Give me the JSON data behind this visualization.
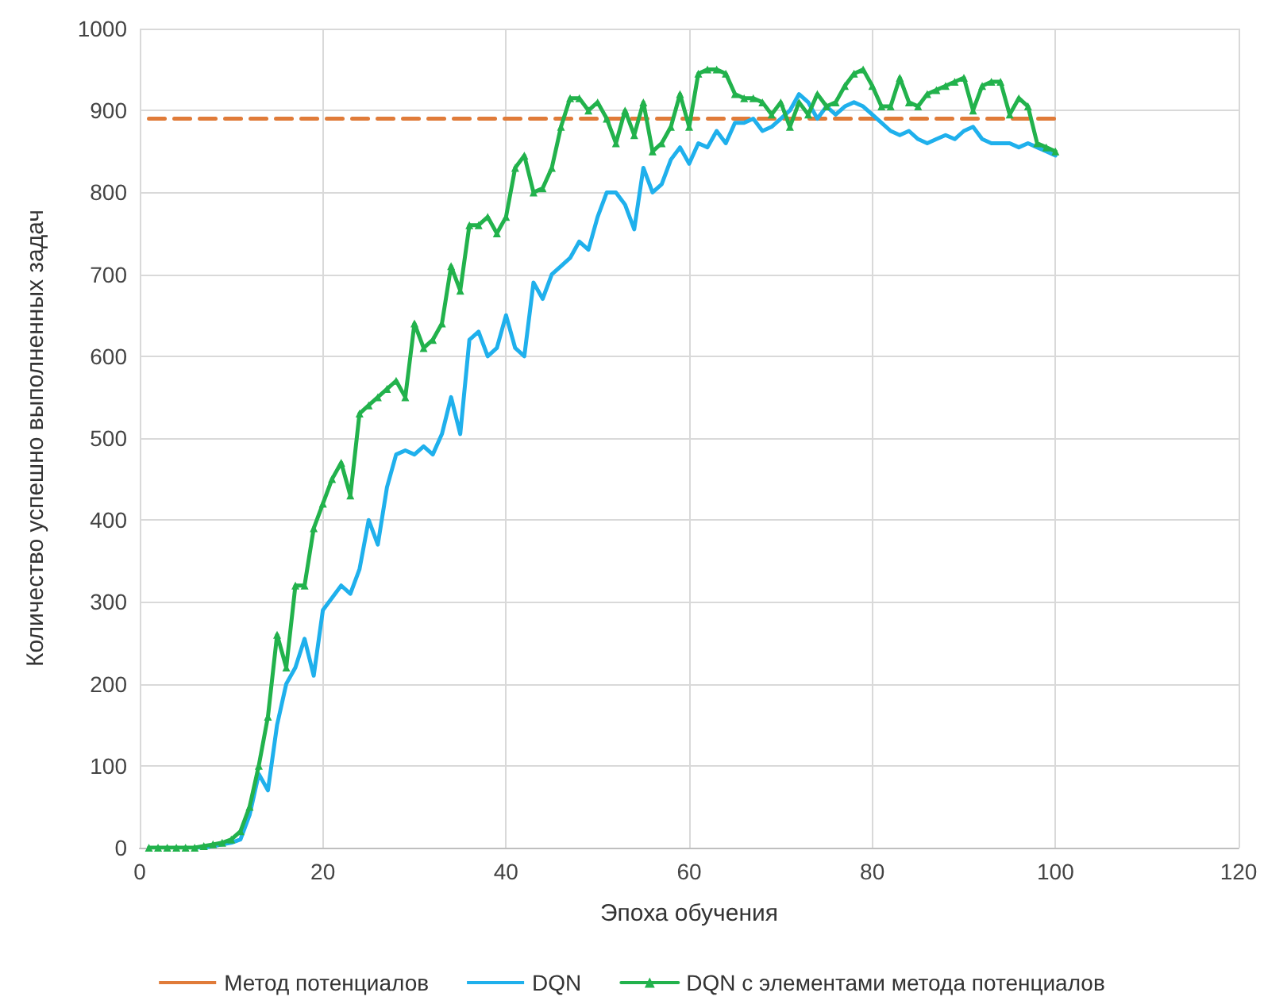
{
  "chart_data": {
    "type": "line",
    "xlabel": "Эпоха обучения",
    "ylabel": "Количество успешно выполненных задач",
    "x": [
      1,
      2,
      3,
      4,
      5,
      6,
      7,
      8,
      9,
      10,
      11,
      12,
      13,
      14,
      15,
      16,
      17,
      18,
      19,
      20,
      21,
      22,
      23,
      24,
      25,
      26,
      27,
      28,
      29,
      30,
      31,
      32,
      33,
      34,
      35,
      36,
      37,
      38,
      39,
      40,
      41,
      42,
      43,
      44,
      45,
      46,
      47,
      48,
      49,
      50,
      51,
      52,
      53,
      54,
      55,
      56,
      57,
      58,
      59,
      60,
      61,
      62,
      63,
      64,
      65,
      66,
      67,
      68,
      69,
      70,
      71,
      72,
      73,
      74,
      75,
      76,
      77,
      78,
      79,
      80,
      81,
      82,
      83,
      84,
      85,
      86,
      87,
      88,
      89,
      90,
      91,
      92,
      93,
      94,
      95,
      96,
      97,
      98,
      99,
      100
    ],
    "series": [
      {
        "name": "Метод потенциалов",
        "color": "#e07b39",
        "x": [
          1,
          100
        ],
        "values": [
          890,
          890
        ],
        "line_style": "dashed",
        "marker": "none"
      },
      {
        "name": "DQN",
        "color": "#1fb0ec",
        "marker": "none",
        "line_style": "solid",
        "values": [
          null,
          null,
          null,
          null,
          null,
          0,
          0,
          2,
          4,
          6,
          10,
          40,
          90,
          70,
          150,
          200,
          220,
          255,
          210,
          290,
          305,
          320,
          310,
          340,
          400,
          370,
          440,
          480,
          485,
          480,
          490,
          480,
          505,
          550,
          505,
          620,
          630,
          600,
          610,
          650,
          610,
          600,
          690,
          670,
          700,
          710,
          720,
          740,
          730,
          770,
          800,
          800,
          785,
          755,
          830,
          800,
          810,
          840,
          855,
          835,
          860,
          855,
          875,
          860,
          885,
          885,
          890,
          875,
          880,
          890,
          900,
          920,
          910,
          890,
          905,
          895,
          905,
          910,
          905,
          895,
          885,
          875,
          870,
          875,
          865,
          860,
          865,
          870,
          865,
          875,
          880,
          865,
          860,
          860,
          860,
          855,
          860,
          855,
          850,
          845
        ]
      },
      {
        "name": "DQN с элементами метода потенциалов",
        "color": "#22b24c",
        "marker": "triangle",
        "line_style": "solid",
        "values": [
          0,
          0,
          0,
          0,
          0,
          0,
          2,
          4,
          6,
          10,
          20,
          50,
          100,
          160,
          260,
          220,
          320,
          320,
          390,
          420,
          450,
          470,
          430,
          530,
          540,
          550,
          560,
          570,
          550,
          640,
          610,
          620,
          640,
          710,
          680,
          760,
          760,
          770,
          750,
          770,
          830,
          845,
          800,
          805,
          830,
          880,
          915,
          915,
          900,
          910,
          890,
          860,
          900,
          870,
          910,
          850,
          860,
          880,
          920,
          880,
          945,
          950,
          950,
          945,
          920,
          915,
          915,
          910,
          895,
          910,
          880,
          910,
          895,
          920,
          905,
          910,
          930,
          945,
          950,
          930,
          905,
          905,
          940,
          910,
          905,
          920,
          925,
          930,
          935,
          940,
          900,
          930,
          935,
          935,
          895,
          915,
          905,
          860,
          855,
          850
        ]
      }
    ],
    "xlim": [
      0,
      120
    ],
    "xticks": [
      0,
      20,
      40,
      60,
      80,
      100,
      120
    ],
    "ylim": [
      0,
      1000
    ],
    "yticks": [
      0,
      100,
      200,
      300,
      400,
      500,
      600,
      700,
      800,
      900,
      1000
    ],
    "grid": true,
    "legend": "bottom"
  }
}
